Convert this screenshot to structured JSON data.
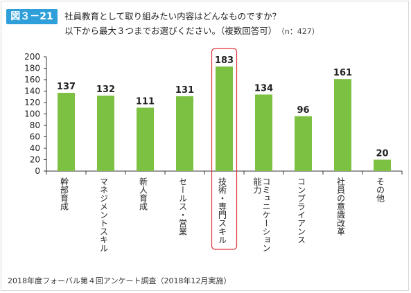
{
  "figure_label": "図３－21",
  "question_line1": "社員教育として取り組みたい内容はどんなものですか？",
  "question_line2": "以下から最大３つまでお選びください。（複数回答可）",
  "sample_size": "（n：427）",
  "footnote": "2018年度フォーバル第４回アンケート調査（2018年12月実施）",
  "colors": {
    "bar": "#7cc142",
    "highlight_border": "#e0343a",
    "label_bg": "#2f9fd9"
  },
  "chart_data": {
    "type": "bar",
    "categories": [
      "幹部育成",
      "マネジメントスキル",
      "新人育成",
      "セールス・営業",
      "技術・専門スキル",
      "コミュニケーション能力",
      "コンプライアンス",
      "社員の意識改革",
      "その他"
    ],
    "category_lines": [
      [
        "幹部育成"
      ],
      [
        "マネジメントスキル"
      ],
      [
        "新人育成"
      ],
      [
        "セールス・営業"
      ],
      [
        "技術・専門スキル"
      ],
      [
        "コミュニケーション",
        "能力"
      ],
      [
        "コンプライアンス"
      ],
      [
        "社員の意識改革"
      ],
      [
        "その他"
      ]
    ],
    "values": [
      137,
      132,
      111,
      131,
      183,
      134,
      96,
      161,
      20
    ],
    "ylim": [
      0,
      200
    ],
    "yticks": [
      0,
      20,
      40,
      60,
      80,
      100,
      120,
      140,
      160,
      180,
      200
    ],
    "highlight_category": "技術・専門スキル",
    "grid": false
  }
}
